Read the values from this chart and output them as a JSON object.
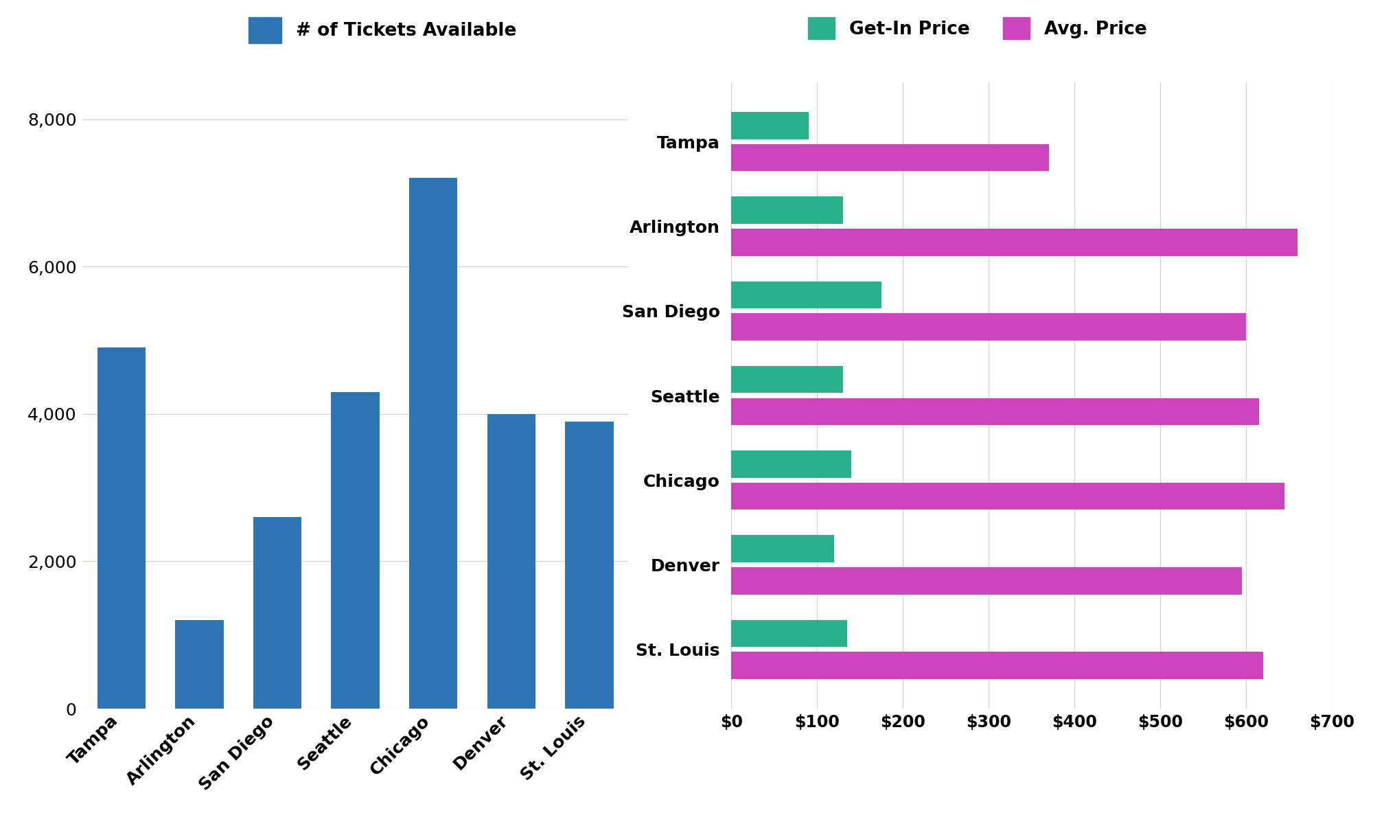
{
  "cities": [
    "Tampa",
    "Arlington",
    "San Diego",
    "Seattle",
    "Chicago",
    "Denver",
    "St. Louis"
  ],
  "ticket_counts": [
    4900,
    1200,
    2600,
    4300,
    7200,
    4000,
    3900
  ],
  "get_in_prices": [
    90,
    130,
    175,
    130,
    140,
    120,
    135
  ],
  "avg_prices": [
    370,
    660,
    600,
    615,
    645,
    595,
    620
  ],
  "bar_color_blue": "#2e75b6",
  "bar_color_green": "#2ab08a",
  "bar_color_pink": "#cc44bb",
  "left_legend_label": "# of Tickets Available",
  "right_legend_label1": "Get-In Price",
  "right_legend_label2": "Avg. Price",
  "left_ylim": [
    0,
    8500
  ],
  "left_yticks": [
    0,
    2000,
    4000,
    6000,
    8000
  ],
  "right_xlim": [
    0,
    700
  ],
  "right_xticks": [
    0,
    100,
    200,
    300,
    400,
    500,
    600,
    700
  ],
  "right_xticklabels": [
    "$0",
    "$100",
    "$200",
    "$300",
    "$400",
    "$500",
    "$600",
    "$700"
  ],
  "background_color": "#ffffff"
}
